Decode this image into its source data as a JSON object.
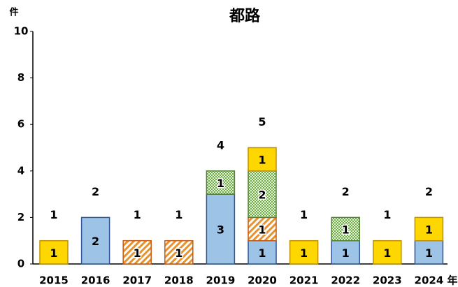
{
  "chart_data": {
    "type": "stacked_bar",
    "title": "都路",
    "y_label": "件",
    "x_label": "年",
    "categories": [
      "2015",
      "2016",
      "2017",
      "2018",
      "2019",
      "2020",
      "2021",
      "2022",
      "2023",
      "2024"
    ],
    "series": [
      {
        "color": "#9dc3e6",
        "stroke": "#2f5597",
        "pattern": "none",
        "values": [
          null,
          2,
          null,
          null,
          3,
          1,
          null,
          1,
          null,
          1
        ]
      },
      {
        "color": "#f4b183",
        "stroke": "#c55a11",
        "pattern": "diagonal",
        "values": [
          null,
          null,
          1,
          1,
          null,
          1,
          null,
          null,
          null,
          null
        ]
      },
      {
        "color": "#a9d18e",
        "stroke": "#548235",
        "pattern": "dots",
        "values": [
          null,
          null,
          null,
          null,
          1,
          2,
          null,
          1,
          null,
          null
        ]
      },
      {
        "color": "#ffd700",
        "stroke": "#bf9000",
        "pattern": "none",
        "values": [
          1,
          null,
          null,
          null,
          null,
          1,
          1,
          null,
          1,
          1
        ]
      }
    ],
    "totals": [
      1,
      2,
      1,
      1,
      4,
      5,
      1,
      2,
      1,
      2
    ],
    "ylim": [
      0,
      10
    ],
    "yticks": [
      0,
      2,
      4,
      6,
      8,
      10
    ],
    "grid": false
  }
}
